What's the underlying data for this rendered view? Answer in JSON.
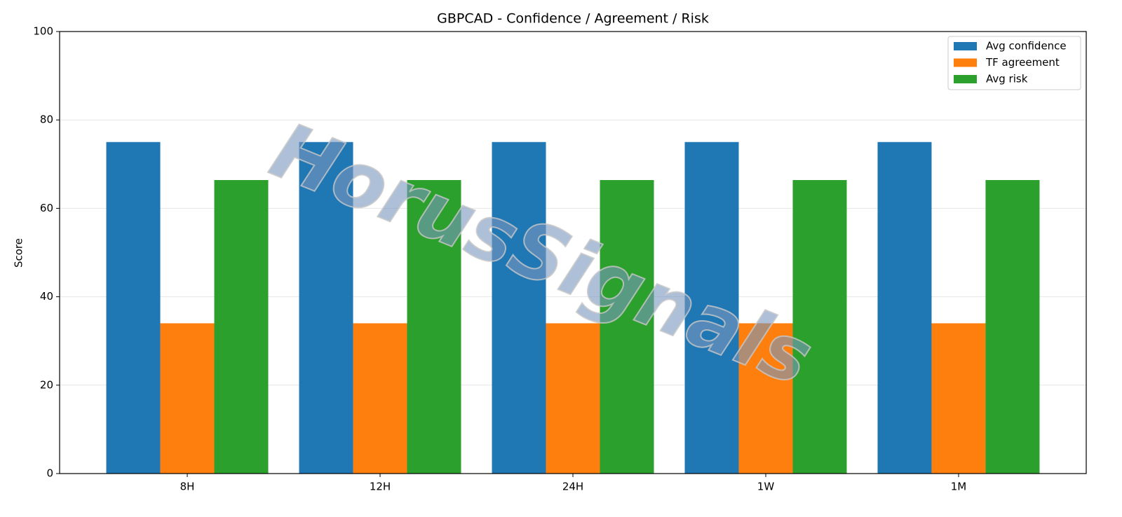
{
  "chart_data": {
    "type": "bar",
    "title": "GBPCAD - Confidence / Agreement / Risk",
    "ylabel": "Score",
    "watermark": "HorusSignals",
    "categories": [
      "8H",
      "12H",
      "24H",
      "1W",
      "1M"
    ],
    "series": [
      {
        "name": "Avg confidence",
        "color": "#1f77b4",
        "values": [
          75,
          75,
          75,
          75,
          75
        ]
      },
      {
        "name": "TF agreement",
        "color": "#ff7f0e",
        "values": [
          34,
          34,
          34,
          34,
          34
        ]
      },
      {
        "name": "Avg risk",
        "color": "#2ca02c",
        "values": [
          66.4,
          66.4,
          66.4,
          66.4,
          66.4
        ]
      }
    ],
    "ylim": [
      0,
      100
    ],
    "yticks": [
      0,
      20,
      40,
      60,
      80,
      100
    ],
    "grid": true,
    "legend": "upper right"
  }
}
